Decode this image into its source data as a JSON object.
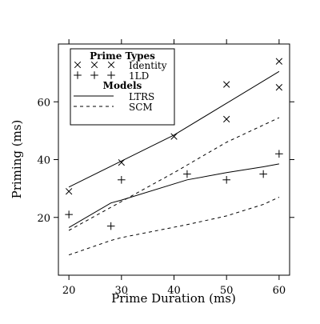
{
  "chart_data": {
    "type": "line",
    "xlabel": "Prime Duration (ms)",
    "ylabel": "Priming (ms)",
    "xlim": [
      18,
      62
    ],
    "ylim": [
      0,
      80
    ],
    "xticks": [
      20,
      30,
      40,
      50,
      60
    ],
    "yticks": [
      20,
      40,
      60
    ],
    "grid": false,
    "legend_position": "top-left",
    "legend": {
      "prime_types_title": "Prime Types",
      "models_title": "Models",
      "entries": [
        {
          "label": "Identity",
          "symbol": "×",
          "count": 3
        },
        {
          "label": "1LD",
          "symbol": "+",
          "count": 3
        },
        {
          "label": "LTRS",
          "line": "solid"
        },
        {
          "label": "SCM",
          "line": "dashed"
        }
      ]
    },
    "points": [
      {
        "name": "Identity",
        "marker": "×",
        "data": [
          [
            20,
            29
          ],
          [
            30,
            39
          ],
          [
            40,
            48
          ],
          [
            50,
            66
          ],
          [
            50,
            54
          ],
          [
            60,
            74
          ],
          [
            60,
            65
          ]
        ]
      },
      {
        "name": "1LD",
        "marker": "+",
        "data": [
          [
            20,
            21
          ],
          [
            28,
            17
          ],
          [
            30,
            33
          ],
          [
            42.5,
            35
          ],
          [
            50,
            33
          ],
          [
            57,
            35
          ],
          [
            60,
            42
          ]
        ]
      }
    ],
    "lines": [
      {
        "model": "LTRS",
        "prime_type": "Identity",
        "style": "solid",
        "data": [
          [
            20,
            30.5
          ],
          [
            30,
            39.5
          ],
          [
            40,
            48.5
          ],
          [
            50,
            59.5
          ],
          [
            60,
            70.5
          ]
        ]
      },
      {
        "model": "LTRS",
        "prime_type": "1LD",
        "style": "solid",
        "data": [
          [
            20,
            16.5
          ],
          [
            28,
            25
          ],
          [
            30,
            26
          ],
          [
            42.5,
            33
          ],
          [
            50,
            35.5
          ],
          [
            57,
            37.5
          ],
          [
            60,
            38.5
          ]
        ]
      },
      {
        "model": "SCM",
        "prime_type": "Identity",
        "style": "dashed",
        "data": [
          [
            20,
            15.5
          ],
          [
            30,
            25.5
          ],
          [
            40,
            35.5
          ],
          [
            50,
            46
          ],
          [
            60,
            54.5
          ]
        ]
      },
      {
        "model": "SCM",
        "prime_type": "1LD",
        "style": "dashed",
        "data": [
          [
            20,
            7
          ],
          [
            28,
            12
          ],
          [
            30,
            13
          ],
          [
            42.5,
            17.5
          ],
          [
            50,
            20.5
          ],
          [
            57,
            24.5
          ],
          [
            60,
            27
          ]
        ]
      }
    ]
  }
}
